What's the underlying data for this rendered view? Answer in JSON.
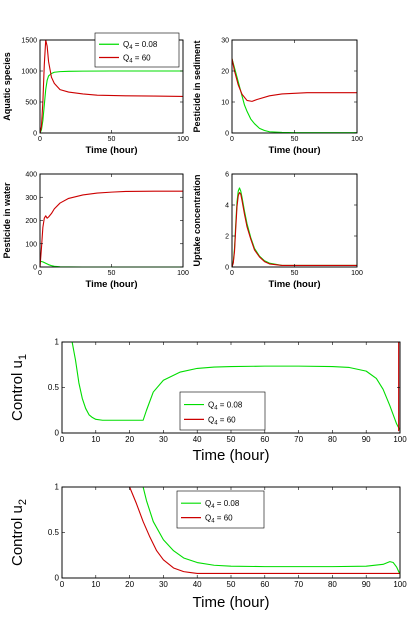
{
  "chart_data": [
    {
      "id": "p1",
      "type": "line",
      "ylabel": "Aquatic species",
      "xlabel": "Time (hour)",
      "xlim": [
        0,
        100
      ],
      "ylim": [
        0,
        1500
      ],
      "xticks": [
        0,
        50,
        100
      ],
      "yticks": [
        0,
        500,
        1000,
        1500
      ],
      "legend": {
        "placement": "top-left",
        "entries": [
          {
            "label": "Q",
            "sub": "4",
            "suffix": " = 0.08",
            "color": "#00dd00"
          },
          {
            "label": "Q",
            "sub": "4",
            "suffix": " = 60",
            "color": "#cc0000"
          }
        ]
      },
      "series": [
        {
          "name": "Q4 = 0.08",
          "color": "#00dd00",
          "x": [
            0,
            1,
            2,
            3,
            4,
            5,
            6,
            8,
            10,
            14,
            20,
            30,
            50,
            100
          ],
          "y": [
            0,
            50,
            200,
            450,
            700,
            850,
            920,
            960,
            980,
            990,
            995,
            998,
            1000,
            1000
          ]
        },
        {
          "name": "Q4 = 60",
          "color": "#cc0000",
          "x": [
            0,
            1,
            2,
            3,
            4,
            5,
            6,
            8,
            10,
            14,
            20,
            30,
            40,
            60,
            80,
            100
          ],
          "y": [
            0,
            100,
            500,
            1100,
            1500,
            1400,
            1150,
            900,
            800,
            700,
            660,
            630,
            610,
            600,
            595,
            590
          ]
        }
      ]
    },
    {
      "id": "p2",
      "type": "line",
      "ylabel": "Pesticide in sediment",
      "xlabel": "Time (hour)",
      "xlim": [
        0,
        100
      ],
      "ylim": [
        0,
        30
      ],
      "xticks": [
        0,
        50,
        100
      ],
      "yticks": [
        0,
        10,
        20,
        30
      ],
      "series": [
        {
          "name": "Q4 = 0.08",
          "color": "#00dd00",
          "x": [
            0,
            2,
            4,
            6,
            8,
            10,
            12,
            15,
            18,
            22,
            26,
            30,
            40,
            50,
            100
          ],
          "y": [
            24,
            21,
            18,
            15,
            12,
            9,
            7,
            4.5,
            3,
            1.5,
            0.8,
            0.4,
            0.2,
            0.1,
            0.1
          ]
        },
        {
          "name": "Q4 = 60",
          "color": "#cc0000",
          "x": [
            0,
            2,
            5,
            8,
            12,
            16,
            20,
            30,
            40,
            50,
            60,
            80,
            100
          ],
          "y": [
            24,
            20,
            15.5,
            12.5,
            10.5,
            10.2,
            10.8,
            12,
            12.6,
            12.8,
            13,
            13,
            13
          ]
        }
      ]
    },
    {
      "id": "p3",
      "type": "line",
      "ylabel": "Pesticide in water",
      "xlabel": "Time (hour)",
      "xlim": [
        0,
        100
      ],
      "ylim": [
        0,
        400
      ],
      "xticks": [
        0,
        50,
        100
      ],
      "yticks": [
        0,
        100,
        200,
        300,
        400
      ],
      "series": [
        {
          "name": "Q4 = 0.08",
          "color": "#00dd00",
          "x": [
            0,
            2,
            4,
            6,
            8,
            10,
            14,
            20,
            30,
            100
          ],
          "y": [
            25,
            22,
            16,
            10,
            6,
            3,
            1,
            0.5,
            0,
            0
          ]
        },
        {
          "name": "Q4 = 60",
          "color": "#cc0000",
          "x": [
            0,
            1,
            2,
            3,
            4,
            5,
            6,
            8,
            10,
            14,
            20,
            30,
            40,
            50,
            60,
            80,
            100
          ],
          "y": [
            0,
            80,
            170,
            210,
            220,
            210,
            215,
            230,
            250,
            275,
            295,
            310,
            318,
            322,
            325,
            326,
            326
          ]
        }
      ]
    },
    {
      "id": "p4",
      "type": "line",
      "ylabel": "Uptake concentration",
      "xlabel": "Time (hour)",
      "xlim": [
        0,
        100
      ],
      "ylim": [
        0,
        6
      ],
      "xticks": [
        0,
        50,
        100
      ],
      "yticks": [
        0,
        2,
        4,
        6
      ],
      "series": [
        {
          "name": "Q4 = 0.08",
          "color": "#00dd00",
          "x": [
            0,
            1,
            2,
            3,
            4,
            5,
            6,
            7,
            8,
            10,
            12,
            15,
            18,
            22,
            26,
            30,
            40,
            50,
            100
          ],
          "y": [
            0,
            0.3,
            1.2,
            2.8,
            4.2,
            4.9,
            5.1,
            4.9,
            4.5,
            3.6,
            2.8,
            1.9,
            1.2,
            0.7,
            0.4,
            0.25,
            0.1,
            0.1,
            0.1
          ]
        },
        {
          "name": "Q4 = 60",
          "color": "#cc0000",
          "x": [
            0,
            1,
            2,
            3,
            4,
            5,
            6,
            7,
            8,
            10,
            12,
            15,
            18,
            22,
            26,
            30,
            40,
            50,
            100
          ],
          "y": [
            0,
            0.25,
            1.0,
            2.5,
            3.9,
            4.6,
            4.8,
            4.7,
            4.3,
            3.4,
            2.6,
            1.8,
            1.1,
            0.65,
            0.35,
            0.2,
            0.1,
            0.1,
            0.1
          ]
        }
      ]
    },
    {
      "id": "p5",
      "type": "line",
      "ylabel": "Control u",
      "ylabel_sub": "1",
      "xlabel": "Time (hour)",
      "xlim": [
        0,
        100
      ],
      "ylim": [
        0,
        1
      ],
      "xticks": [
        0,
        10,
        20,
        30,
        40,
        50,
        60,
        70,
        80,
        90,
        100
      ],
      "yticks": [
        0,
        0.5,
        1
      ],
      "legend": {
        "placement": "center-right",
        "entries": [
          {
            "label": "Q",
            "sub": "4",
            "suffix": " = 0.08",
            "color": "#00dd00"
          },
          {
            "label": "Q",
            "sub": "4",
            "suffix": " = 60",
            "color": "#cc0000"
          }
        ]
      },
      "series": [
        {
          "name": "Q4 = 0.08",
          "color": "#00dd00",
          "x": [
            3,
            4,
            5,
            6,
            7,
            8,
            9,
            10,
            12,
            15,
            20,
            24,
            25,
            27,
            30,
            35,
            40,
            45,
            50,
            60,
            70,
            80,
            85,
            90,
            93,
            95,
            97,
            98,
            99,
            100
          ],
          "y": [
            1,
            0.8,
            0.55,
            0.38,
            0.27,
            0.2,
            0.17,
            0.15,
            0.14,
            0.14,
            0.14,
            0.14,
            0.25,
            0.45,
            0.58,
            0.67,
            0.71,
            0.725,
            0.73,
            0.735,
            0.735,
            0.73,
            0.72,
            0.68,
            0.6,
            0.48,
            0.3,
            0.2,
            0.1,
            0.03
          ]
        },
        {
          "name": "Q4 = 60",
          "color": "#cc0000",
          "x": [
            99.6,
            99.6
          ],
          "y": [
            0.02,
            1
          ]
        }
      ]
    },
    {
      "id": "p6",
      "type": "line",
      "ylabel": "Control u",
      "ylabel_sub": "2",
      "xlabel": "Time (hour)",
      "xlim": [
        0,
        100
      ],
      "ylim": [
        0,
        1
      ],
      "xticks": [
        0,
        10,
        20,
        30,
        40,
        50,
        60,
        70,
        80,
        90,
        100
      ],
      "yticks": [
        0,
        0.5,
        1
      ],
      "legend": {
        "placement": "top-right",
        "entries": [
          {
            "label": "Q",
            "sub": "4",
            "suffix": " = 0.08",
            "color": "#00dd00"
          },
          {
            "label": "Q",
            "sub": "4",
            "suffix": " = 60",
            "color": "#cc0000"
          }
        ]
      },
      "series": [
        {
          "name": "Q4 = 0.08",
          "color": "#00dd00",
          "x": [
            24,
            25,
            27,
            30,
            33,
            36,
            40,
            45,
            50,
            60,
            70,
            80,
            90,
            95,
            97,
            98,
            99,
            100
          ],
          "y": [
            1,
            0.85,
            0.62,
            0.42,
            0.3,
            0.22,
            0.17,
            0.14,
            0.13,
            0.125,
            0.125,
            0.125,
            0.13,
            0.15,
            0.18,
            0.17,
            0.12,
            0.04
          ]
        },
        {
          "name": "Q4 = 60",
          "color": "#cc0000",
          "x": [
            20,
            22,
            24,
            26,
            28,
            30,
            33,
            36,
            38,
            40,
            50,
            60,
            70,
            80,
            90,
            100
          ],
          "y": [
            1,
            0.82,
            0.62,
            0.45,
            0.3,
            0.2,
            0.11,
            0.07,
            0.06,
            0.05,
            0.05,
            0.05,
            0.05,
            0.05,
            0.05,
            0.05
          ]
        }
      ]
    }
  ]
}
